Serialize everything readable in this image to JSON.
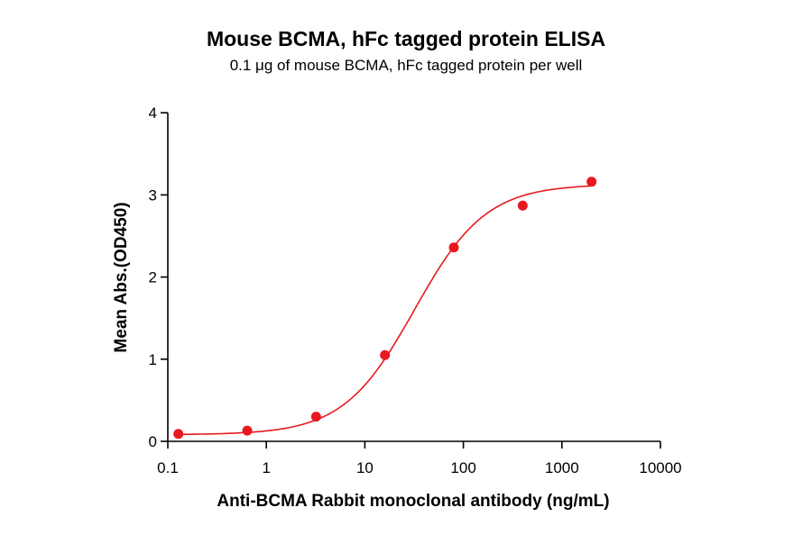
{
  "chart_data": {
    "type": "scatter",
    "title": "Mouse BCMA, hFc tagged protein ELISA",
    "subtitle": "0.1 μg of mouse BCMA, hFc tagged protein per well",
    "xlabel": "Anti-BCMA Rabbit monoclonal antibody (ng/mL)",
    "ylabel": "Mean Abs.(OD450)",
    "xscale": "log",
    "xlim": [
      0.1,
      10000
    ],
    "ylim": [
      0,
      4
    ],
    "xticks": [
      "0.1",
      "1",
      "10",
      "100",
      "1000",
      "10000"
    ],
    "yticks": [
      "0",
      "1",
      "2",
      "3",
      "4"
    ],
    "grid": false,
    "color": "#e8191e",
    "x": [
      0.128,
      0.64,
      3.2,
      16,
      80,
      400,
      2000
    ],
    "y": [
      0.09,
      0.13,
      0.3,
      1.05,
      2.36,
      2.87,
      3.16
    ],
    "fit": {
      "model": "4PL",
      "bottom": 0.08,
      "top": 3.13,
      "ec50": 32,
      "hill": 1.2
    }
  }
}
